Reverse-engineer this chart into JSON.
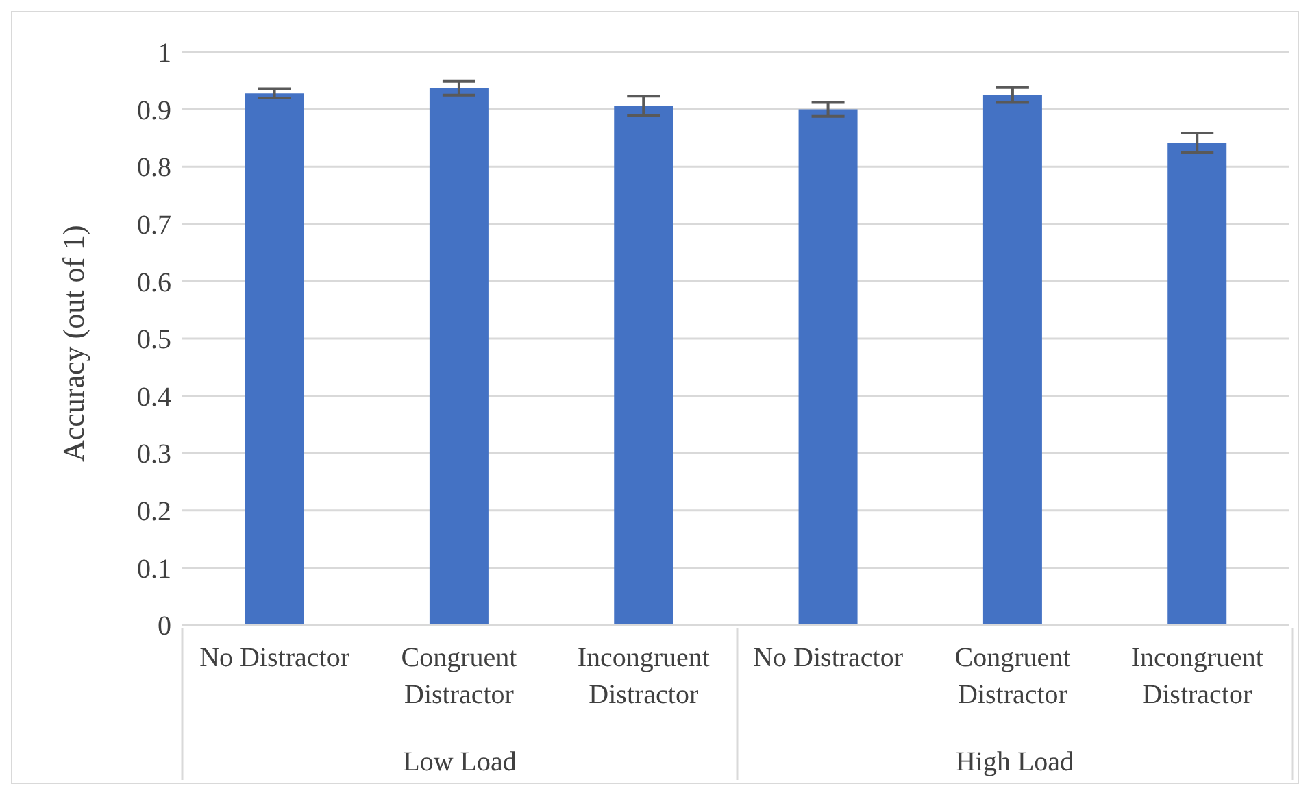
{
  "chart_data": {
    "type": "bar",
    "ylabel": "Accuracy (out of 1)",
    "categories": [
      "No Distractor",
      "Congruent Distractor",
      "Incongruent Distractor",
      "No Distractor",
      "Congruent Distractor",
      "Incongruent Distractor"
    ],
    "values": [
      0.928,
      0.937,
      0.906,
      0.9,
      0.925,
      0.842
    ],
    "errors": [
      0.008,
      0.012,
      0.017,
      0.012,
      0.013,
      0.017
    ],
    "color": "#4472c4",
    "annotations": [
      "Low Load",
      "High Load"
    ],
    "ylim": [
      0,
      1
    ],
    "yticks": [
      0,
      0.1,
      0.2,
      0.3,
      0.4,
      0.5,
      0.6,
      0.7,
      0.8,
      0.9,
      1
    ],
    "grid": "y",
    "legend": false
  }
}
